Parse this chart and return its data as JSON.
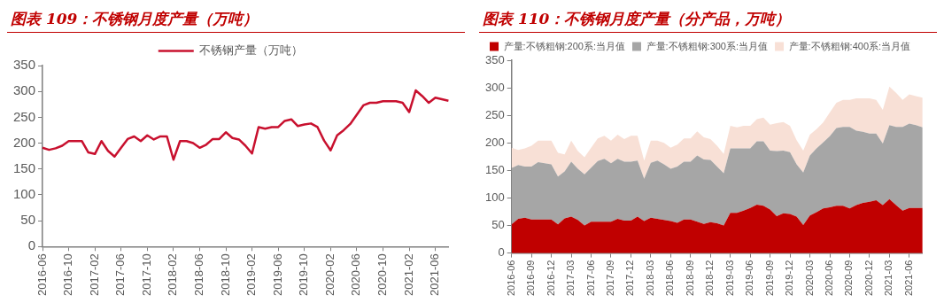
{
  "chart_data": [
    {
      "type": "line",
      "title": "图表 109：不锈钢月度产量（万吨）",
      "categories": [
        "2016-06",
        null,
        null,
        null,
        "2016-10",
        null,
        null,
        null,
        "2017-02",
        null,
        null,
        null,
        "2017-06",
        null,
        null,
        null,
        "2017-10",
        null,
        null,
        null,
        "2018-02",
        null,
        null,
        null,
        "2018-06",
        null,
        null,
        null,
        "2018-10",
        null,
        null,
        null,
        "2019-02",
        null,
        null,
        null,
        "2019-06",
        null,
        null,
        null,
        "2019-10",
        null,
        null,
        null,
        "2020-02",
        null,
        null,
        null,
        "2020-06",
        null,
        null,
        null,
        "2020-10",
        null,
        null,
        null,
        "2021-02",
        null,
        null,
        null,
        "2021-06",
        null,
        null
      ],
      "series": [
        {
          "name": "不锈钢产量（万吨）",
          "color": "#c8102e",
          "values": [
            191,
            187,
            190,
            195,
            204,
            204,
            204,
            182,
            179,
            204,
            185,
            174,
            191,
            208,
            213,
            204,
            215,
            207,
            213,
            213,
            168,
            204,
            204,
            200,
            191,
            197,
            208,
            208,
            221,
            210,
            207,
            195,
            180,
            231,
            228,
            231,
            231,
            243,
            246,
            233,
            236,
            238,
            231,
            205,
            186,
            215,
            225,
            237,
            255,
            273,
            278,
            278,
            281,
            281,
            281,
            278,
            260,
            302,
            291,
            278,
            288,
            285,
            282
          ]
        }
      ],
      "ylim": [
        0,
        350
      ],
      "yticks": [
        0,
        50,
        100,
        150,
        200,
        250,
        300,
        350
      ],
      "grid": false,
      "legend": "top",
      "marker": "none"
    },
    {
      "type": "area",
      "title": "图表 110：不锈钢月度产量（分产品，万吨）",
      "stacked": true,
      "categories": [
        "2016-06",
        null,
        null,
        "2016-09",
        null,
        null,
        "2016-12",
        null,
        null,
        "2017-03",
        null,
        null,
        "2017-06",
        null,
        null,
        "2017-09",
        null,
        null,
        "2017-12",
        null,
        null,
        "2018-03",
        null,
        null,
        "2018-06",
        null,
        null,
        "2018-09",
        null,
        null,
        "2018-12",
        null,
        null,
        "2019-03",
        null,
        null,
        "2019-06",
        null,
        null,
        "2019-09",
        null,
        null,
        "2019-12",
        null,
        null,
        "2020-03",
        null,
        null,
        "2020-06",
        null,
        null,
        "2020-09",
        null,
        null,
        "2020-12",
        null,
        null,
        "2021-03",
        null,
        null,
        "2021-06",
        null,
        null
      ],
      "series": [
        {
          "name": "产量:不锈粗钢:200系:当月值",
          "color": "#c00000",
          "values": [
            52,
            62,
            64,
            61,
            61,
            61,
            61,
            52,
            63,
            66,
            60,
            50,
            57,
            57,
            57,
            57,
            62,
            59,
            59,
            66,
            58,
            64,
            62,
            60,
            58,
            55,
            61,
            61,
            57,
            53,
            56,
            54,
            50,
            73,
            73,
            77,
            82,
            88,
            86,
            79,
            67,
            72,
            71,
            66,
            51,
            68,
            74,
            81,
            83,
            86,
            86,
            81,
            87,
            91,
            93,
            96,
            87,
            98,
            87,
            77,
            82,
            82,
            82
          ]
        },
        {
          "name": "产量:不锈粗钢:300系:当月值",
          "color": "#a6a6a6",
          "values": [
            102,
            98,
            93,
            96,
            104,
            102,
            100,
            87,
            85,
            100,
            93,
            93,
            98,
            110,
            114,
            106,
            109,
            107,
            107,
            102,
            77,
            100,
            106,
            101,
            95,
            102,
            105,
            105,
            120,
            117,
            113,
            103,
            95,
            117,
            117,
            113,
            108,
            115,
            117,
            107,
            118,
            114,
            112,
            95,
            95,
            109,
            116,
            120,
            129,
            141,
            143,
            148,
            135,
            129,
            124,
            121,
            112,
            134,
            142,
            152,
            153,
            150,
            146
          ]
        },
        {
          "name": "产量:不锈粗钢:400系:当月值",
          "color": "#f8e0d6",
          "values": [
            37,
            27,
            33,
            38,
            39,
            41,
            43,
            43,
            31,
            38,
            32,
            31,
            36,
            41,
            42,
            41,
            44,
            41,
            47,
            45,
            33,
            40,
            36,
            39,
            38,
            40,
            42,
            42,
            44,
            40,
            38,
            38,
            35,
            41,
            38,
            41,
            41,
            40,
            43,
            47,
            51,
            52,
            48,
            44,
            40,
            38,
            35,
            36,
            43,
            46,
            49,
            49,
            59,
            61,
            64,
            61,
            61,
            70,
            62,
            49,
            53,
            53,
            54
          ]
        }
      ],
      "ylim": [
        0,
        350
      ],
      "yticks": [
        0,
        50,
        100,
        150,
        200,
        250,
        300,
        350
      ],
      "grid": false,
      "legend": "top",
      "marker": "none"
    }
  ]
}
